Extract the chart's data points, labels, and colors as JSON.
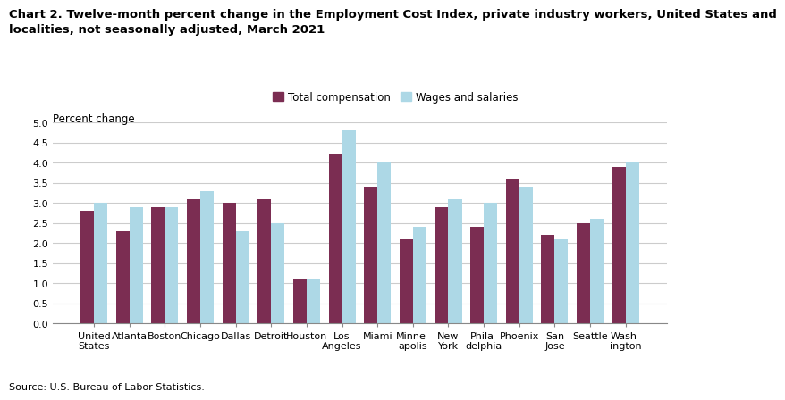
{
  "title_line1": "Chart 2. Twelve-month percent change in the Employment Cost Index, private industry workers, United States and",
  "title_line2": "localities, not seasonally adjusted, March 2021",
  "ylabel": "Percent change",
  "source": "Source: U.S. Bureau of Labor Statistics.",
  "categories": [
    "United\nStates",
    "Atlanta",
    "Boston",
    "Chicago",
    "Dallas",
    "Detroit",
    "Houston",
    "Los\nAngeles",
    "Miami",
    "Minne-\napolis",
    "New\nYork",
    "Phila-\ndelphia",
    "Phoenix",
    "San\nJose",
    "Seattle",
    "Wash-\nington"
  ],
  "total_compensation": [
    2.8,
    2.3,
    2.9,
    3.1,
    3.0,
    3.1,
    1.1,
    4.2,
    3.4,
    2.1,
    2.9,
    2.4,
    3.6,
    2.2,
    2.5,
    3.9
  ],
  "wages_and_salaries": [
    3.0,
    2.9,
    2.9,
    3.3,
    2.3,
    2.5,
    1.1,
    4.8,
    4.0,
    2.4,
    3.1,
    3.0,
    3.4,
    2.1,
    2.6,
    4.0
  ],
  "color_total": "#7B2D52",
  "color_wages": "#ADD8E6",
  "ylim": [
    0,
    5.0
  ],
  "yticks": [
    0.0,
    0.5,
    1.0,
    1.5,
    2.0,
    2.5,
    3.0,
    3.5,
    4.0,
    4.5,
    5.0
  ],
  "legend_labels": [
    "Total compensation",
    "Wages and salaries"
  ],
  "bar_width": 0.38,
  "title_fontsize": 9.5,
  "axis_label_fontsize": 8.5,
  "tick_fontsize": 8,
  "legend_fontsize": 8.5
}
